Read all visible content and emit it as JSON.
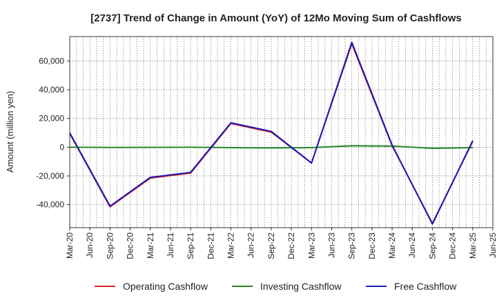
{
  "chart_data": {
    "type": "line",
    "title": "[2737]  Trend of Change in Amount (YoY) of 12Mo Moving Sum of Cashflows",
    "xlabel": "",
    "ylabel": "Amount (million yen)",
    "x_tick_labels": [
      "Mar-20",
      "Jun-20",
      "Sep-20",
      "Dec-20",
      "Mar-21",
      "Jun-21",
      "Sep-21",
      "Dec-21",
      "Mar-22",
      "Jun-22",
      "Sep-22",
      "Dec-22",
      "Mar-23",
      "Jun-23",
      "Sep-23",
      "Dec-23",
      "Mar-24",
      "Jun-24",
      "Sep-24",
      "Dec-24",
      "Mar-25",
      "Jun-25"
    ],
    "y_ticks": [
      -40000,
      -20000,
      0,
      20000,
      40000,
      60000
    ],
    "y_tick_labels": [
      "-40,000",
      "-20,000",
      "0",
      "20,000",
      "40,000",
      "60,000"
    ],
    "ylim": [
      -56000,
      77000
    ],
    "grid": true,
    "legend_position": "bottom",
    "series": [
      {
        "name": "Operating Cashflow",
        "color": "#dd2222",
        "points": [
          [
            "Mar-20",
            9500
          ],
          [
            "Sep-20",
            -41500
          ],
          [
            "Mar-21",
            -21500
          ],
          [
            "Sep-21",
            -18000
          ],
          [
            "Mar-22",
            16500
          ],
          [
            "Sep-22",
            10500
          ],
          [
            "Mar-23",
            -11000
          ],
          [
            "Sep-23",
            72000
          ],
          [
            "Mar-24",
            1000
          ],
          [
            "Sep-24",
            -53000
          ],
          [
            "Mar-25",
            4000
          ]
        ]
      },
      {
        "name": "Investing Cashflow",
        "color": "#228822",
        "points": [
          [
            "Mar-20",
            0
          ],
          [
            "Sep-20",
            -200
          ],
          [
            "Mar-21",
            -100
          ],
          [
            "Sep-21",
            0
          ],
          [
            "Mar-22",
            -300
          ],
          [
            "Sep-22",
            -500
          ],
          [
            "Mar-23",
            -300
          ],
          [
            "Sep-23",
            1000
          ],
          [
            "Mar-24",
            800
          ],
          [
            "Sep-24",
            -800
          ],
          [
            "Mar-25",
            -300
          ]
        ]
      },
      {
        "name": "Free Cashflow",
        "color": "#1a1ab8",
        "points": [
          [
            "Mar-20",
            10000
          ],
          [
            "Sep-20",
            -41000
          ],
          [
            "Mar-21",
            -21000
          ],
          [
            "Sep-21",
            -17500
          ],
          [
            "Mar-22",
            17000
          ],
          [
            "Sep-22",
            11000
          ],
          [
            "Mar-23",
            -11000
          ],
          [
            "Sep-23",
            73000
          ],
          [
            "Mar-24",
            1500
          ],
          [
            "Sep-24",
            -53500
          ],
          [
            "Mar-25",
            4500
          ]
        ]
      }
    ]
  }
}
